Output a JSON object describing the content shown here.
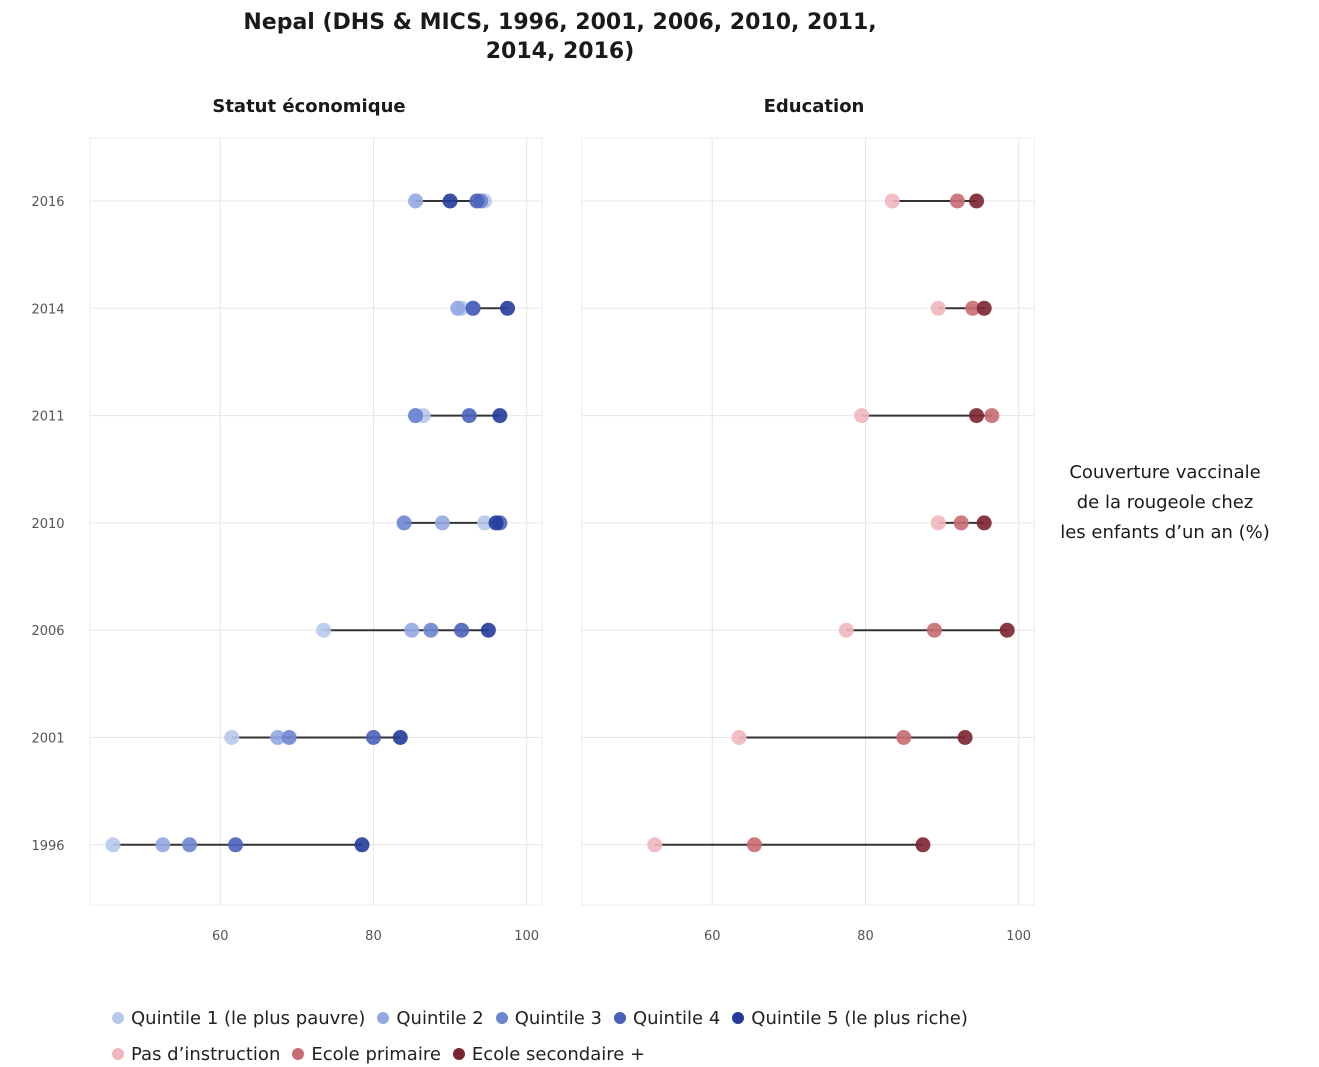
{
  "chart_data": {
    "type": "scatter",
    "title_lines": [
      "Nepal (DHS & MICS, 1996, 2001, 2006, 2010, 2011,",
      "2014, 2016)"
    ],
    "side_label_lines": [
      "Couverture vaccinale",
      "de la rougeole chez",
      "les enfants d’un an (%)"
    ],
    "years": [
      "2016",
      "2014",
      "2011",
      "2010",
      "2006",
      "2001",
      "1996"
    ],
    "x_ticks": [
      "60",
      "80",
      "100"
    ],
    "xlim": [
      43,
      102
    ],
    "grid": true,
    "legend_position": "bottom",
    "panels": [
      {
        "title": "Statut économique",
        "series": [
          {
            "name": "Quintile 1 (le plus pauvre)",
            "color": "#b8c9ec",
            "values": [
              94.5,
              91.5,
              86.5,
              94.5,
              73.5,
              61.5,
              46.0
            ]
          },
          {
            "name": "Quintile 2",
            "color": "#94a9e2",
            "values": [
              85.5,
              91.0,
              85.5,
              89.0,
              85.0,
              67.5,
              52.5
            ]
          },
          {
            "name": "Quintile 3",
            "color": "#6d86d1",
            "values": [
              94.0,
              93.0,
              85.5,
              84.0,
              87.5,
              69.0,
              56.0
            ]
          },
          {
            "name": "Quintile 4",
            "color": "#4a62ba",
            "values": [
              93.5,
              93.0,
              92.5,
              96.5,
              91.5,
              80.0,
              62.0
            ]
          },
          {
            "name": "Quintile 5 (le plus riche)",
            "color": "#243c9c",
            "values": [
              90.0,
              97.5,
              96.5,
              96.0,
              95.0,
              83.5,
              78.5
            ]
          }
        ]
      },
      {
        "title": "Education",
        "series": [
          {
            "name": "Pas d’instruction",
            "color": "#f1b6bf",
            "values": [
              83.5,
              89.5,
              79.5,
              89.5,
              77.5,
              63.5,
              52.5
            ]
          },
          {
            "name": "Ecole primaire",
            "color": "#c86b73",
            "values": [
              92.0,
              94.0,
              96.5,
              92.5,
              89.0,
              85.0,
              65.5
            ]
          },
          {
            "name": "Ecole secondaire +",
            "color": "#7c2430",
            "values": [
              94.5,
              95.5,
              94.5,
              95.5,
              98.5,
              93.0,
              87.5
            ]
          }
        ]
      }
    ]
  }
}
